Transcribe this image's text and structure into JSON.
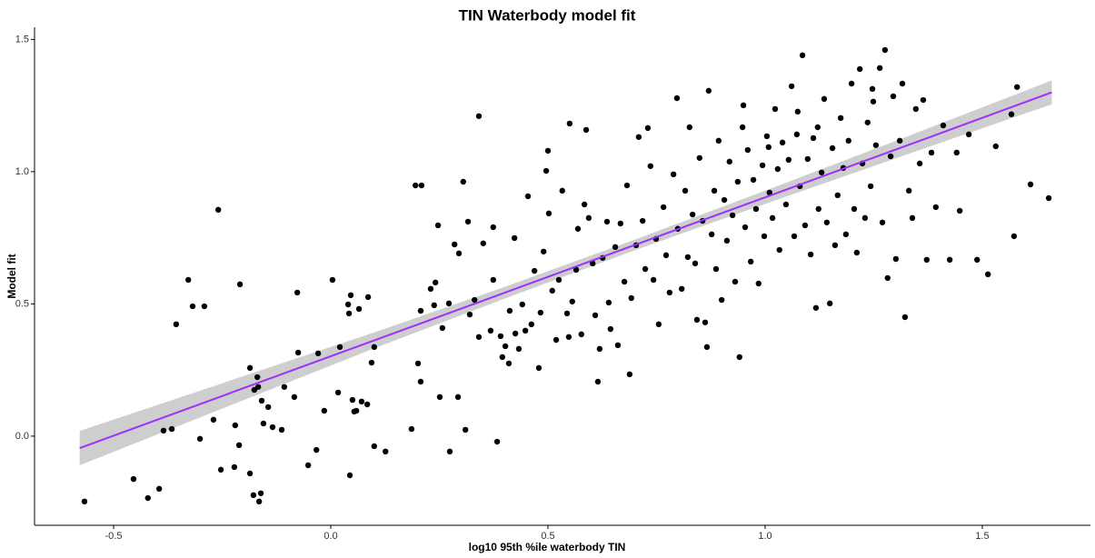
{
  "chart_data": {
    "type": "scatter",
    "title": "TIN Waterbody model fit",
    "x_label": "log10 95th %ile waterbody TIN",
    "y_label": "Model fit",
    "color": "#000000",
    "xlim": [
      -0.682,
      1.749
    ],
    "ylim": [
      -0.337,
      1.546
    ],
    "xticks": [
      -0.5,
      {
        "value": 0,
        "label": "0.0"
      },
      0.5,
      {
        "value": 1,
        "label": "1.0"
      },
      1.5
    ],
    "yticks": [
      {
        "value": 0,
        "label": "0.0"
      },
      0.5,
      {
        "value": 1,
        "label": "1.0"
      },
      1.5
    ],
    "grid": false,
    "x": [
      -0.567,
      -0.454,
      -0.421,
      -0.395,
      -0.385,
      -0.366,
      -0.356,
      -0.328,
      -0.318,
      -0.291,
      -0.301,
      -0.27,
      -0.259,
      -0.253,
      -0.222,
      -0.22,
      -0.211,
      -0.209,
      -0.186,
      -0.186,
      -0.176,
      -0.169,
      -0.167,
      -0.165,
      -0.161,
      -0.159,
      -0.155,
      -0.144,
      -0.134,
      -0.178,
      -0.113,
      -0.107,
      -0.084,
      -0.077,
      -0.075,
      -0.052,
      -0.033,
      -0.029,
      -0.015,
      0.004,
      0.017,
      0.021,
      0.04,
      0.044,
      0.046,
      0.042,
      0.05,
      0.054,
      0.059,
      0.065,
      0.071,
      0.084,
      0.086,
      0.094,
      0.1,
      0.1,
      0.126,
      0.186,
      0.195,
      0.209,
      0.201,
      0.207,
      0.207,
      0.23,
      0.238,
      0.241,
      0.247,
      0.251,
      0.257,
      0.272,
      0.274,
      0.285,
      0.293,
      0.295,
      0.31,
      0.305,
      0.316,
      0.32,
      0.331,
      0.341,
      0.341,
      0.351,
      0.368,
      0.374,
      0.374,
      0.383,
      0.391,
      0.395,
      0.402,
      0.41,
      0.412,
      0.423,
      0.425,
      0.433,
      0.441,
      0.448,
      0.454,
      0.462,
      0.469,
      0.479,
      0.483,
      0.49,
      0.496,
      0.5,
      0.502,
      0.51,
      0.519,
      0.525,
      0.533,
      0.544,
      0.548,
      0.55,
      0.556,
      0.565,
      0.569,
      0.577,
      0.584,
      0.588,
      0.594,
      0.603,
      0.609,
      0.615,
      0.619,
      0.626,
      0.636,
      0.64,
      0.644,
      0.655,
      0.661,
      0.667,
      0.676,
      0.682,
      0.688,
      0.692,
      0.703,
      0.709,
      0.718,
      0.724,
      0.73,
      0.736,
      0.743,
      0.749,
      0.755,
      0.766,
      0.772,
      0.78,
      0.789,
      0.797,
      0.799,
      0.808,
      0.816,
      0.822,
      0.826,
      0.833,
      0.839,
      0.843,
      0.849,
      0.856,
      0.862,
      0.866,
      0.87,
      0.877,
      0.883,
      0.887,
      0.893,
      0.9,
      0.906,
      0.912,
      0.918,
      0.925,
      0.931,
      0.937,
      0.941,
      0.948,
      0.954,
      0.96,
      0.967,
      0.973,
      0.979,
      0.985,
      0.994,
      0.998,
      1.004,
      1.01,
      1.017,
      1.023,
      1.029,
      1.033,
      1.04,
      1.048,
      1.054,
      1.061,
      1.067,
      1.073,
      1.08,
      1.086,
      1.092,
      1.098,
      1.105,
      1.111,
      1.117,
      1.123,
      1.13,
      1.136,
      1.142,
      1.149,
      1.155,
      1.161,
      1.167,
      1.174,
      1.18,
      1.186,
      1.192,
      1.199,
      1.205,
      1.211,
      1.218,
      1.224,
      1.23,
      1.236,
      1.243,
      1.249,
      1.255,
      1.264,
      1.27,
      1.276,
      1.282,
      1.289,
      1.295,
      1.301,
      1.31,
      1.316,
      1.322,
      1.331,
      1.339,
      1.347,
      1.356,
      1.364,
      1.372,
      1.383,
      1.393,
      1.41,
      1.425,
      1.441,
      1.448,
      1.469,
      1.488,
      1.513,
      1.531,
      1.567,
      1.573,
      1.58,
      1.611,
      1.653,
      0.95,
      1.008,
      1.075,
      1.121,
      1.247
    ],
    "y": [
      -0.247,
      -0.162,
      -0.234,
      -0.199,
      0.021,
      0.027,
      0.423,
      0.591,
      0.491,
      0.491,
      -0.01,
      0.062,
      0.856,
      -0.127,
      -0.117,
      0.041,
      -0.034,
      0.574,
      0.258,
      -0.141,
      0.175,
      0.223,
      0.186,
      -0.247,
      -0.216,
      0.134,
      0.048,
      0.11,
      0.034,
      -0.223,
      0.024,
      0.186,
      0.148,
      0.543,
      0.316,
      -0.11,
      -0.052,
      0.313,
      0.096,
      0.591,
      0.165,
      0.337,
      0.498,
      -0.148,
      0.533,
      0.464,
      0.137,
      0.093,
      0.096,
      0.481,
      0.131,
      0.12,
      0.526,
      0.278,
      0.337,
      -0.038,
      -0.058,
      0.027,
      0.948,
      0.948,
      0.275,
      0.474,
      0.206,
      0.557,
      0.495,
      0.581,
      0.797,
      0.148,
      0.409,
      0.502,
      -0.058,
      0.725,
      0.148,
      0.691,
      0.024,
      0.962,
      0.811,
      0.46,
      0.515,
      1.21,
      0.375,
      0.729,
      0.399,
      0.591,
      0.79,
      -0.021,
      0.378,
      0.299,
      0.34,
      0.275,
      0.474,
      0.749,
      0.388,
      0.33,
      0.498,
      0.399,
      0.907,
      0.423,
      0.625,
      0.258,
      0.467,
      0.698,
      1.003,
      1.079,
      0.842,
      0.55,
      0.364,
      0.591,
      0.928,
      0.464,
      0.375,
      1.182,
      0.509,
      0.629,
      0.784,
      0.385,
      0.876,
      1.158,
      0.825,
      0.653,
      0.457,
      0.206,
      0.33,
      0.674,
      0.811,
      0.505,
      0.405,
      0.715,
      0.344,
      0.804,
      0.584,
      0.948,
      0.234,
      0.522,
      0.722,
      1.131,
      0.814,
      0.632,
      1.165,
      1.021,
      0.591,
      0.746,
      0.423,
      0.866,
      0.684,
      0.543,
      0.99,
      1.278,
      0.784,
      0.557,
      0.928,
      0.677,
      1.168,
      0.838,
      0.653,
      0.44,
      1.052,
      0.814,
      0.43,
      0.337,
      1.306,
      0.763,
      0.928,
      0.632,
      1.117,
      0.515,
      0.893,
      0.739,
      1.038,
      0.835,
      0.584,
      0.962,
      0.299,
      1.168,
      0.79,
      1.082,
      0.66,
      0.969,
      0.859,
      0.577,
      1.024,
      0.756,
      1.134,
      0.921,
      0.825,
      1.237,
      1.01,
      0.704,
      1.11,
      0.876,
      1.045,
      1.323,
      0.756,
      1.141,
      0.945,
      1.44,
      0.797,
      1.048,
      0.687,
      1.127,
      0.485,
      0.859,
      0.997,
      1.275,
      0.808,
      0.502,
      1.089,
      0.722,
      0.911,
      1.203,
      1.014,
      0.763,
      1.117,
      1.333,
      0.859,
      0.694,
      1.388,
      1.031,
      0.825,
      1.186,
      0.945,
      1.265,
      1.1,
      1.392,
      0.808,
      1.46,
      0.598,
      1.058,
      1.285,
      0.67,
      1.117,
      1.333,
      0.45,
      0.928,
      0.825,
      1.237,
      1.031,
      1.271,
      0.667,
      1.072,
      0.866,
      1.175,
      0.667,
      1.072,
      0.852,
      1.141,
      0.667,
      0.612,
      1.096,
      1.217,
      0.756,
      1.32,
      0.952,
      0.9,
      1.251,
      1.093,
      1.227,
      1.168,
      1.313
    ],
    "fit": {
      "color": "#9b30ff",
      "band_color": "#bebebe",
      "x": [
        -0.578,
        0.1,
        0.4,
        0.7,
        1.0,
        1.3,
        1.66
      ],
      "y": [
        -0.045,
        0.362,
        0.542,
        0.723,
        0.903,
        1.083,
        1.3
      ],
      "lower": [
        -0.11,
        0.332,
        0.52,
        0.703,
        0.878,
        1.05,
        1.255
      ],
      "upper": [
        0.02,
        0.392,
        0.564,
        0.743,
        0.928,
        1.116,
        1.345
      ]
    }
  }
}
